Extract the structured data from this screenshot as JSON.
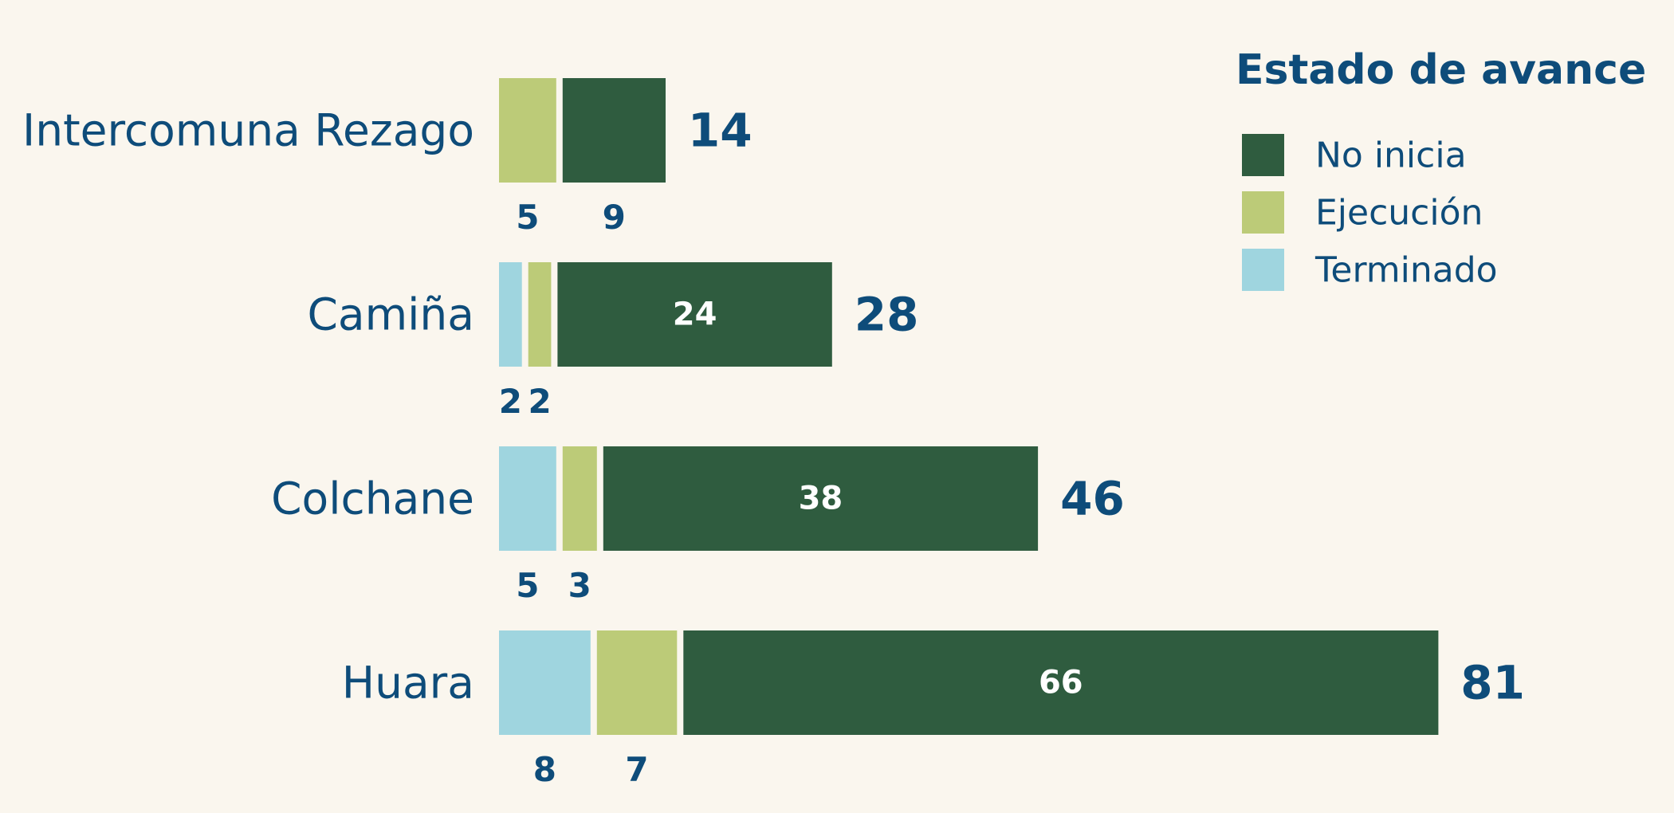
{
  "chart_data": {
    "type": "bar",
    "orientation": "horizontal",
    "stacked": true,
    "categories": [
      "Intercomuna Rezago",
      "Camiña",
      "Colchane",
      "Huara"
    ],
    "series": [
      {
        "name": "Terminado",
        "values": [
          0,
          2,
          5,
          8
        ],
        "color": "#9FD5DF"
      },
      {
        "name": "Ejecución",
        "values": [
          5,
          2,
          3,
          7
        ],
        "color": "#BCCB78"
      },
      {
        "name": "No inicia",
        "values": [
          9,
          24,
          38,
          66
        ],
        "color": "#2F5C3F"
      }
    ],
    "totals": [
      14,
      28,
      46,
      81
    ],
    "title": "",
    "xlabel": "",
    "ylabel": "",
    "xlim": [
      0,
      81
    ],
    "grid": false,
    "legend": {
      "title": "Estado de avance",
      "position": "top-right",
      "order": [
        "No inicia",
        "Ejecución",
        "Terminado"
      ]
    },
    "label_color": "#0E4C7A",
    "inside_label_color": "#FFFFFF",
    "background": "#FAF6EE"
  }
}
